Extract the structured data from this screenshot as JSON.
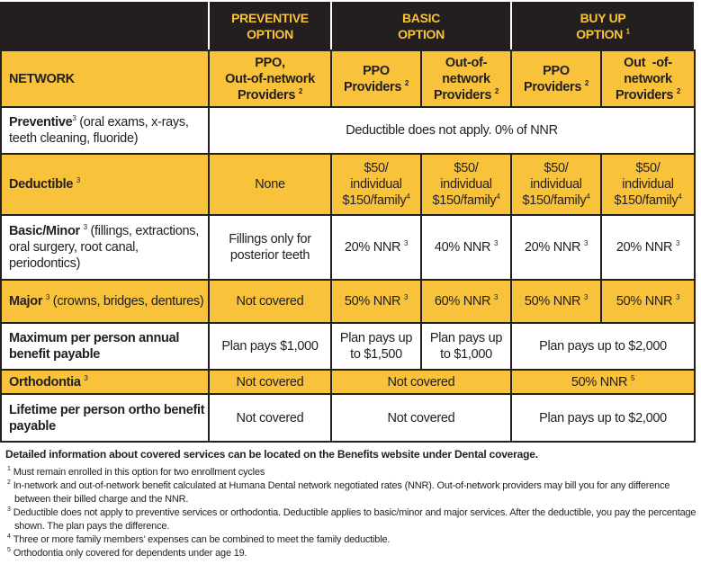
{
  "colors": {
    "header_bg": "#231f20",
    "header_text": "#f8c23a",
    "accent_yellow": "#f8c23a"
  },
  "header": {
    "preventive": {
      "line1": "PREVENTIVE",
      "line2": "OPTION"
    },
    "basic": {
      "line1": "BASIC",
      "line2": "OPTION"
    },
    "buyup": {
      "line1": "BUY UP",
      "line2": "OPTION",
      "sup": "1"
    }
  },
  "network": {
    "label": "NETWORK",
    "preventive": {
      "line1": "PPO,",
      "line2": "Out-of-network",
      "line3": "Providers",
      "sup": "2"
    },
    "basic_ppo": {
      "line1": "PPO",
      "line2": "Providers",
      "sup": "2"
    },
    "basic_oon": {
      "line1": "Out-of-",
      "line2": "network",
      "line3": "Providers",
      "sup": "2"
    },
    "buyup_ppo": {
      "line1": "PPO",
      "line2": "Providers",
      "sup": "2"
    },
    "buyup_oon": {
      "line1": "Out  -of-",
      "line2": "network",
      "line3": "Providers",
      "sup": "2"
    }
  },
  "rows": {
    "preventive": {
      "title": "Preventive",
      "sup": "3",
      "desc": " (oral exams, x-rays, teeth cleaning, fluoride)",
      "value": "Deductible does not apply. 0% of NNR"
    },
    "deductible": {
      "title": "Deductible",
      "sup": "3",
      "preventive": "None",
      "amt": "$50/",
      "ind": "individual",
      "fam": "$150/family",
      "fam_sup": "4"
    },
    "basic": {
      "title": "Basic/Minor",
      "sup": "3",
      "desc": " (fillings, extractions, oral surgery, root canal, periodontics)",
      "preventive": "Fillings only for posterior teeth",
      "basic_ppo": "20% NNR",
      "basic_oon": "40% NNR",
      "buyup_ppo": "20% NNR",
      "buyup_oon": "20% NNR",
      "val_sup": "3"
    },
    "major": {
      "title": "Major",
      "sup": "3",
      "desc": " (crowns, bridges, dentures)",
      "preventive": "Not covered",
      "basic_ppo": "50% NNR",
      "basic_oon": "60% NNR",
      "buyup_ppo": "50% NNR",
      "buyup_oon": "50% NNR",
      "val_sup": "3"
    },
    "maximum": {
      "title": "Maximum per person annual benefit payable",
      "preventive": "Plan pays $1,000",
      "basic_ppo": "Plan pays up to $1,500",
      "basic_oon": "Plan pays up to $1,000",
      "buyup": "Plan pays up to $2,000"
    },
    "ortho": {
      "title": "Orthodontia",
      "sup": "3",
      "preventive": "Not covered",
      "basic": "Not covered",
      "buyup": "50% NNR",
      "buyup_sup": "5"
    },
    "lifetime": {
      "title": "Lifetime per person ortho benefit payable",
      "preventive": "Not covered",
      "basic": "Not covered",
      "buyup": "Plan pays up to $2,000"
    }
  },
  "notes": {
    "lead": "Detailed information about covered services can be located on the Benefits website under Dental coverage.",
    "footnotes": [
      {
        "num": "1",
        "text": "Must remain enrolled in this option for two enrollment cycles"
      },
      {
        "num": "2",
        "text": "In-network and out-of-network benefit calculated at Humana Dental network negotiated rates (NNR). Out-of-network providers may bill you for any difference between their billed charge and the NNR."
      },
      {
        "num": "3",
        "text": "Deductible does not apply to preventive services or orthodontia. Deductible applies to basic/minor and major services. After the deductible, you pay the percentage shown. The plan pays the difference."
      },
      {
        "num": "4",
        "text": "Three or more family members’ expenses can be combined to meet the family deductible."
      },
      {
        "num": "5",
        "text": "Orthodontia only covered for dependents under age 19."
      }
    ]
  }
}
